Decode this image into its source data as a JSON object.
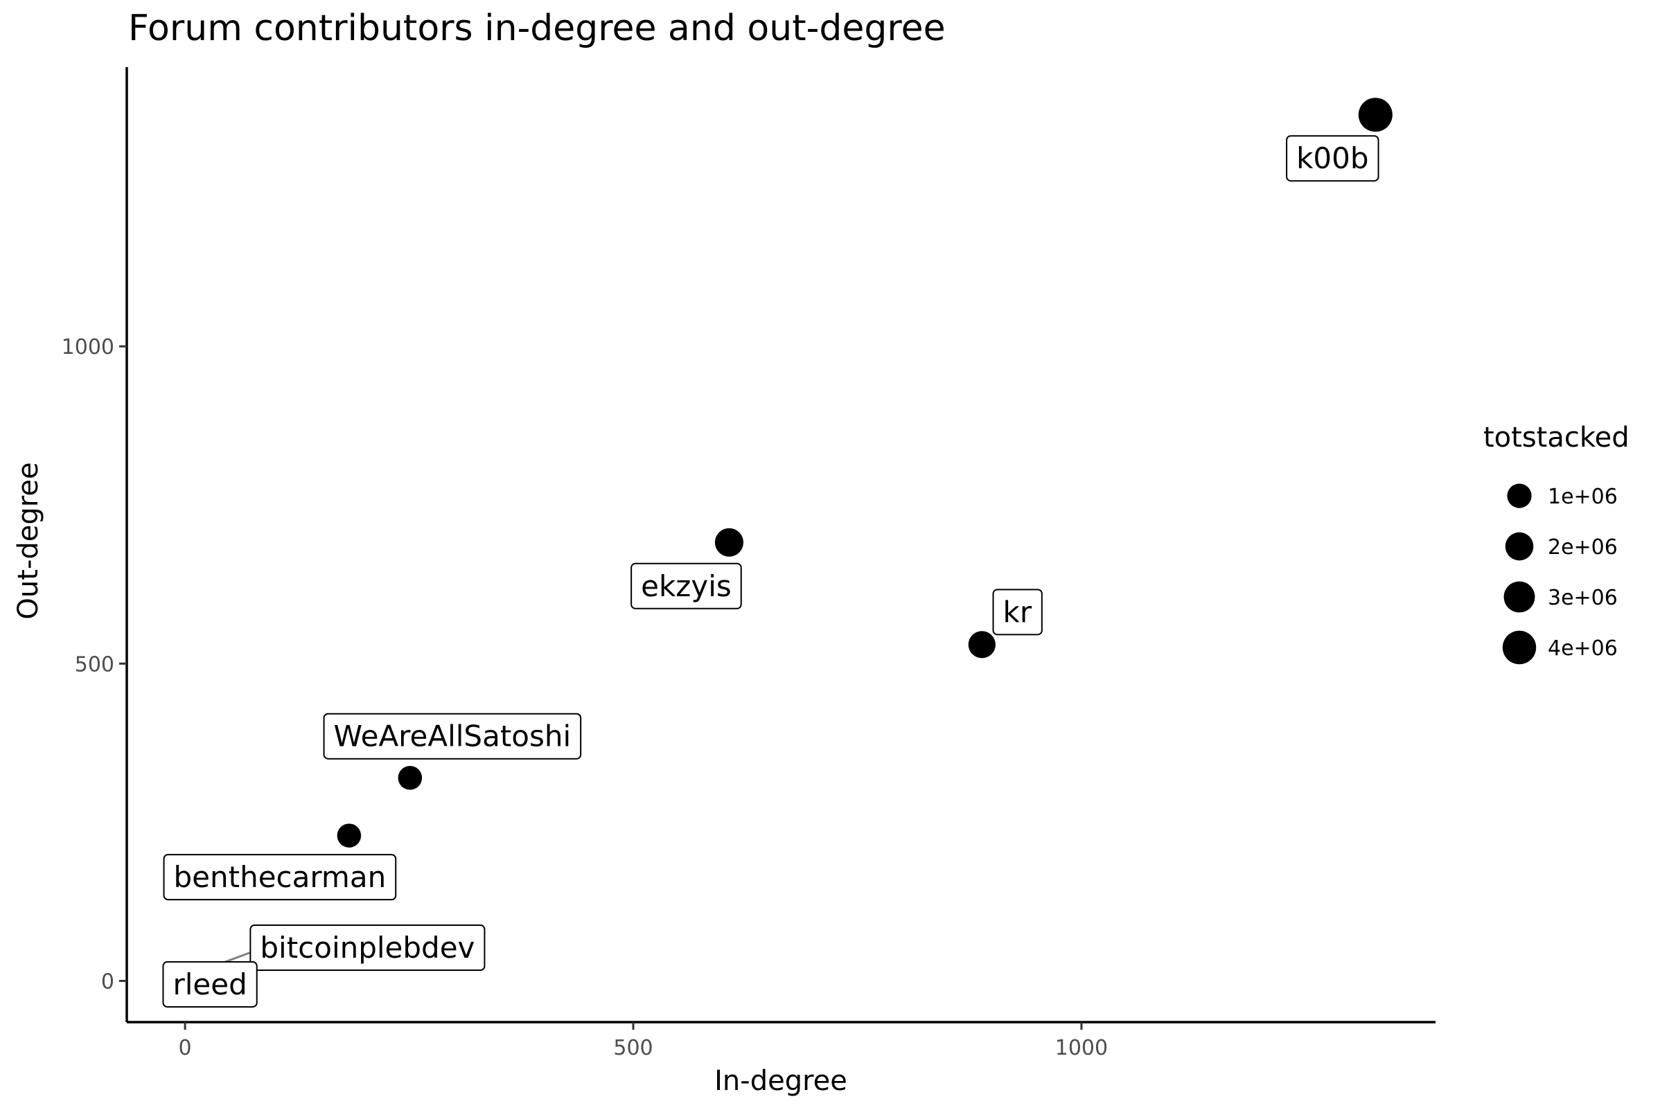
{
  "chart_data": {
    "type": "scatter",
    "title": "Forum contributors in-degree and out-degree",
    "xlabel": "In-degree",
    "ylabel": "Out-degree",
    "xlim": [
      -65,
      1395
    ],
    "ylim": [
      -65,
      1440
    ],
    "x_ticks": [
      0,
      500,
      1000
    ],
    "y_ticks": [
      0,
      500,
      1000
    ],
    "x_tick_labels": [
      "0",
      "500",
      "1000"
    ],
    "y_tick_labels": [
      "0",
      "500",
      "1000"
    ],
    "grid": false,
    "legend": {
      "title": "totstacked",
      "placement": "right",
      "entries": [
        {
          "label": "1e+06",
          "value": 1000000
        },
        {
          "label": "2e+06",
          "value": 2000000
        },
        {
          "label": "3e+06",
          "value": 3000000
        },
        {
          "label": "4e+06",
          "value": 4000000
        }
      ]
    },
    "size_variable": "totstacked",
    "points": [
      {
        "label": "k00b",
        "x": 1328,
        "y": 1365,
        "totstacked": 4200000,
        "label_offset": [
          -62,
          63
        ]
      },
      {
        "label": "ekzyis",
        "x": 607,
        "y": 691,
        "totstacked": 2100000,
        "label_offset": [
          -62,
          63
        ]
      },
      {
        "label": "kr",
        "x": 889,
        "y": 530,
        "totstacked": 1700000,
        "label_offset": [
          51,
          -47
        ]
      },
      {
        "label": "WeAreAllSatoshi",
        "x": 251,
        "y": 320,
        "totstacked": 900000,
        "label_offset": [
          61,
          -60
        ]
      },
      {
        "label": "benthecarman",
        "x": 183,
        "y": 229,
        "totstacked": 900000,
        "label_offset": [
          -100,
          60
        ]
      },
      {
        "label": "bitcoinplebdev",
        "x": 1,
        "y": 1,
        "totstacked": 0,
        "label_offset": [
          262,
          -47
        ],
        "leader": true
      },
      {
        "label": "rleed",
        "x": 0,
        "y": 0,
        "totstacked": 0,
        "label_offset": [
          36,
          5
        ]
      }
    ]
  }
}
